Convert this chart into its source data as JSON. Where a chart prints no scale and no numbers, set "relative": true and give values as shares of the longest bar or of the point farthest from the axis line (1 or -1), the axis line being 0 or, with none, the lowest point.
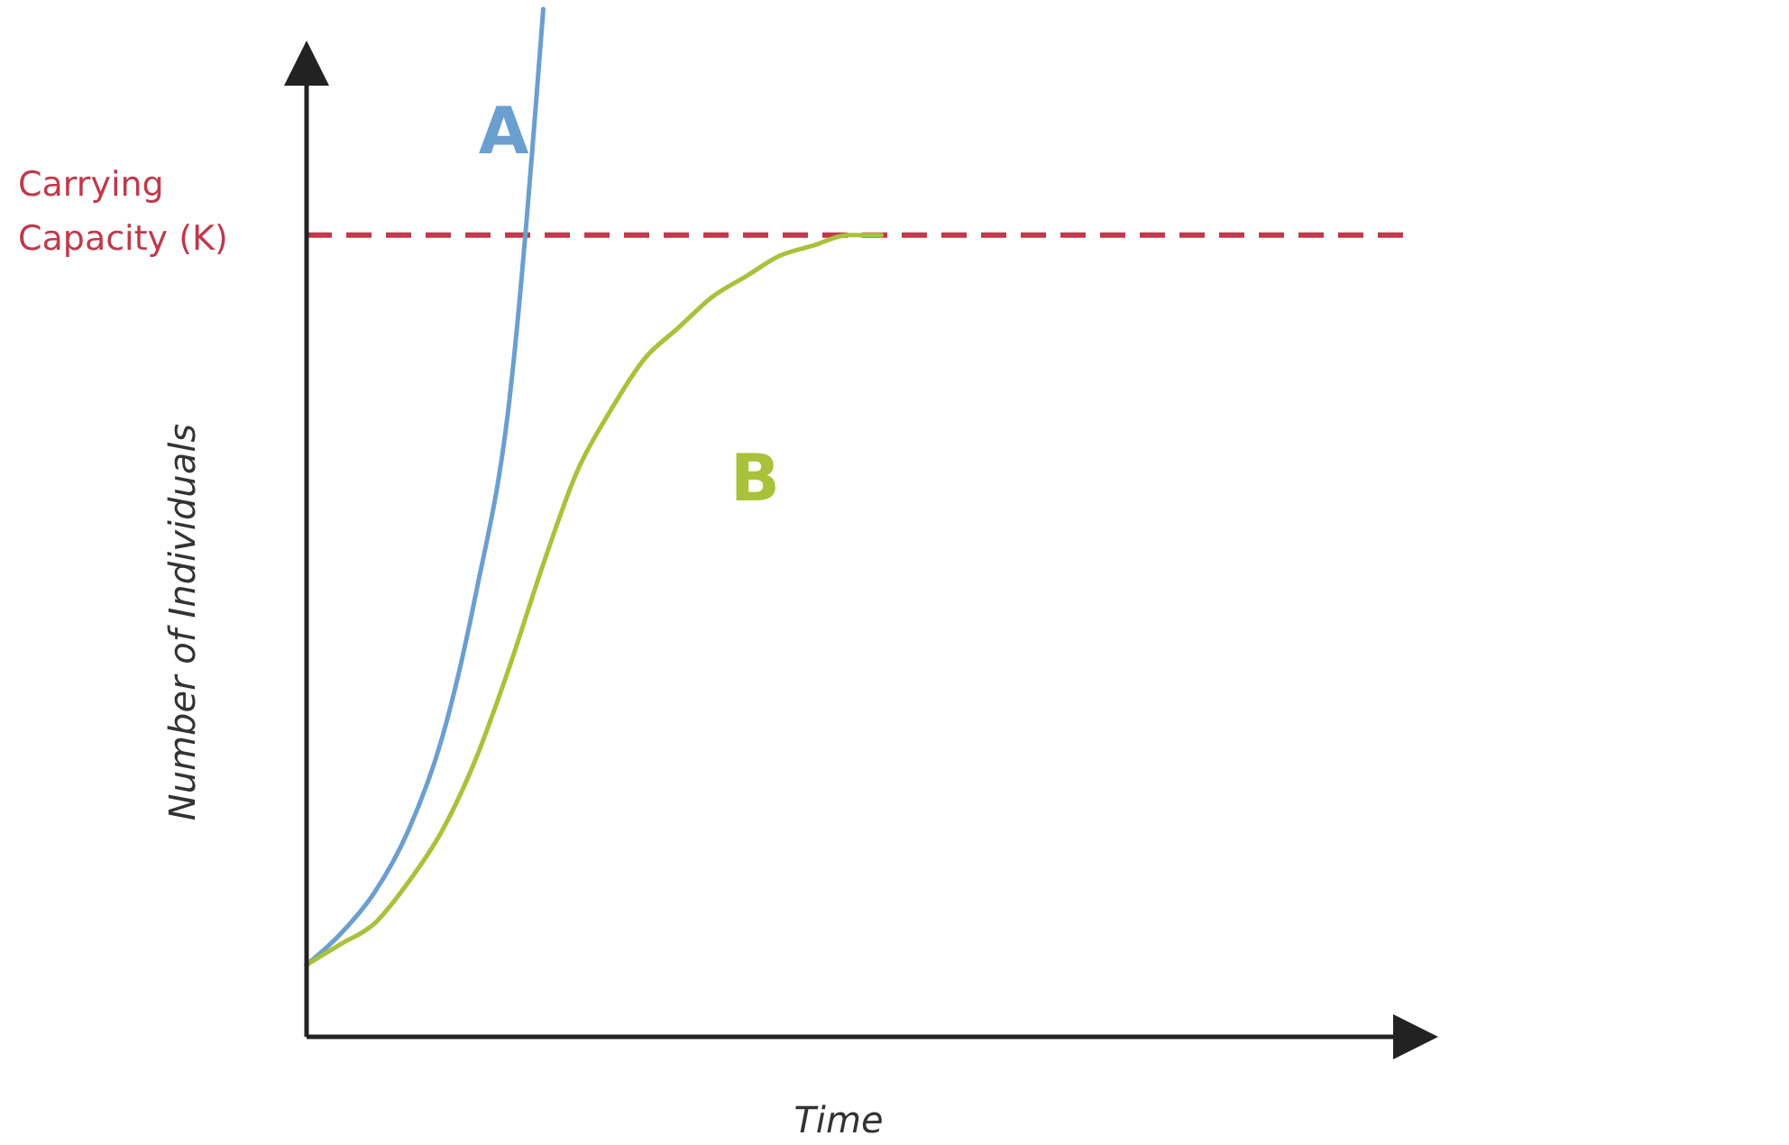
{
  "chart_data": {
    "type": "line",
    "relative": true,
    "xlabel": "Time",
    "ylabel": "Number of Individuals",
    "categories": [
      null,
      null,
      null,
      null,
      null,
      null,
      null,
      null,
      null,
      null,
      null,
      null,
      null,
      null,
      null,
      null,
      null,
      null,
      null,
      null,
      null,
      null,
      null,
      null,
      null,
      null,
      null,
      null,
      null,
      null,
      null,
      null,
      null
    ],
    "series": [
      {
        "name": "A",
        "color": "#6a9fcf",
        "values": [
          0.07,
          0.1,
          0.14,
          0.2,
          0.29,
          0.43,
          0.62,
          1,
          null,
          null,
          null,
          null,
          null,
          null,
          null,
          null,
          null,
          null,
          null,
          null,
          null,
          null,
          null,
          null,
          null,
          null,
          null,
          null,
          null,
          null,
          null,
          null,
          null
        ]
      },
      {
        "name": "B",
        "color": "#a8c23a",
        "values": [
          0.07,
          0.09,
          0.11,
          0.15,
          0.2,
          0.27,
          0.36,
          0.46,
          0.55,
          0.61,
          0.66,
          0.69,
          0.72,
          0.74,
          0.76,
          0.77,
          0.78,
          0.78,
          null,
          null,
          null,
          null,
          null,
          null,
          null,
          null,
          null,
          null,
          null,
          null,
          null,
          null,
          null
        ]
      }
    ],
    "ref_lines": [
      {
        "axis": "y",
        "value": 0.78,
        "label": "Carrying Capacity (K)",
        "color": "#c0394b",
        "line_style": "dashed"
      }
    ]
  }
}
